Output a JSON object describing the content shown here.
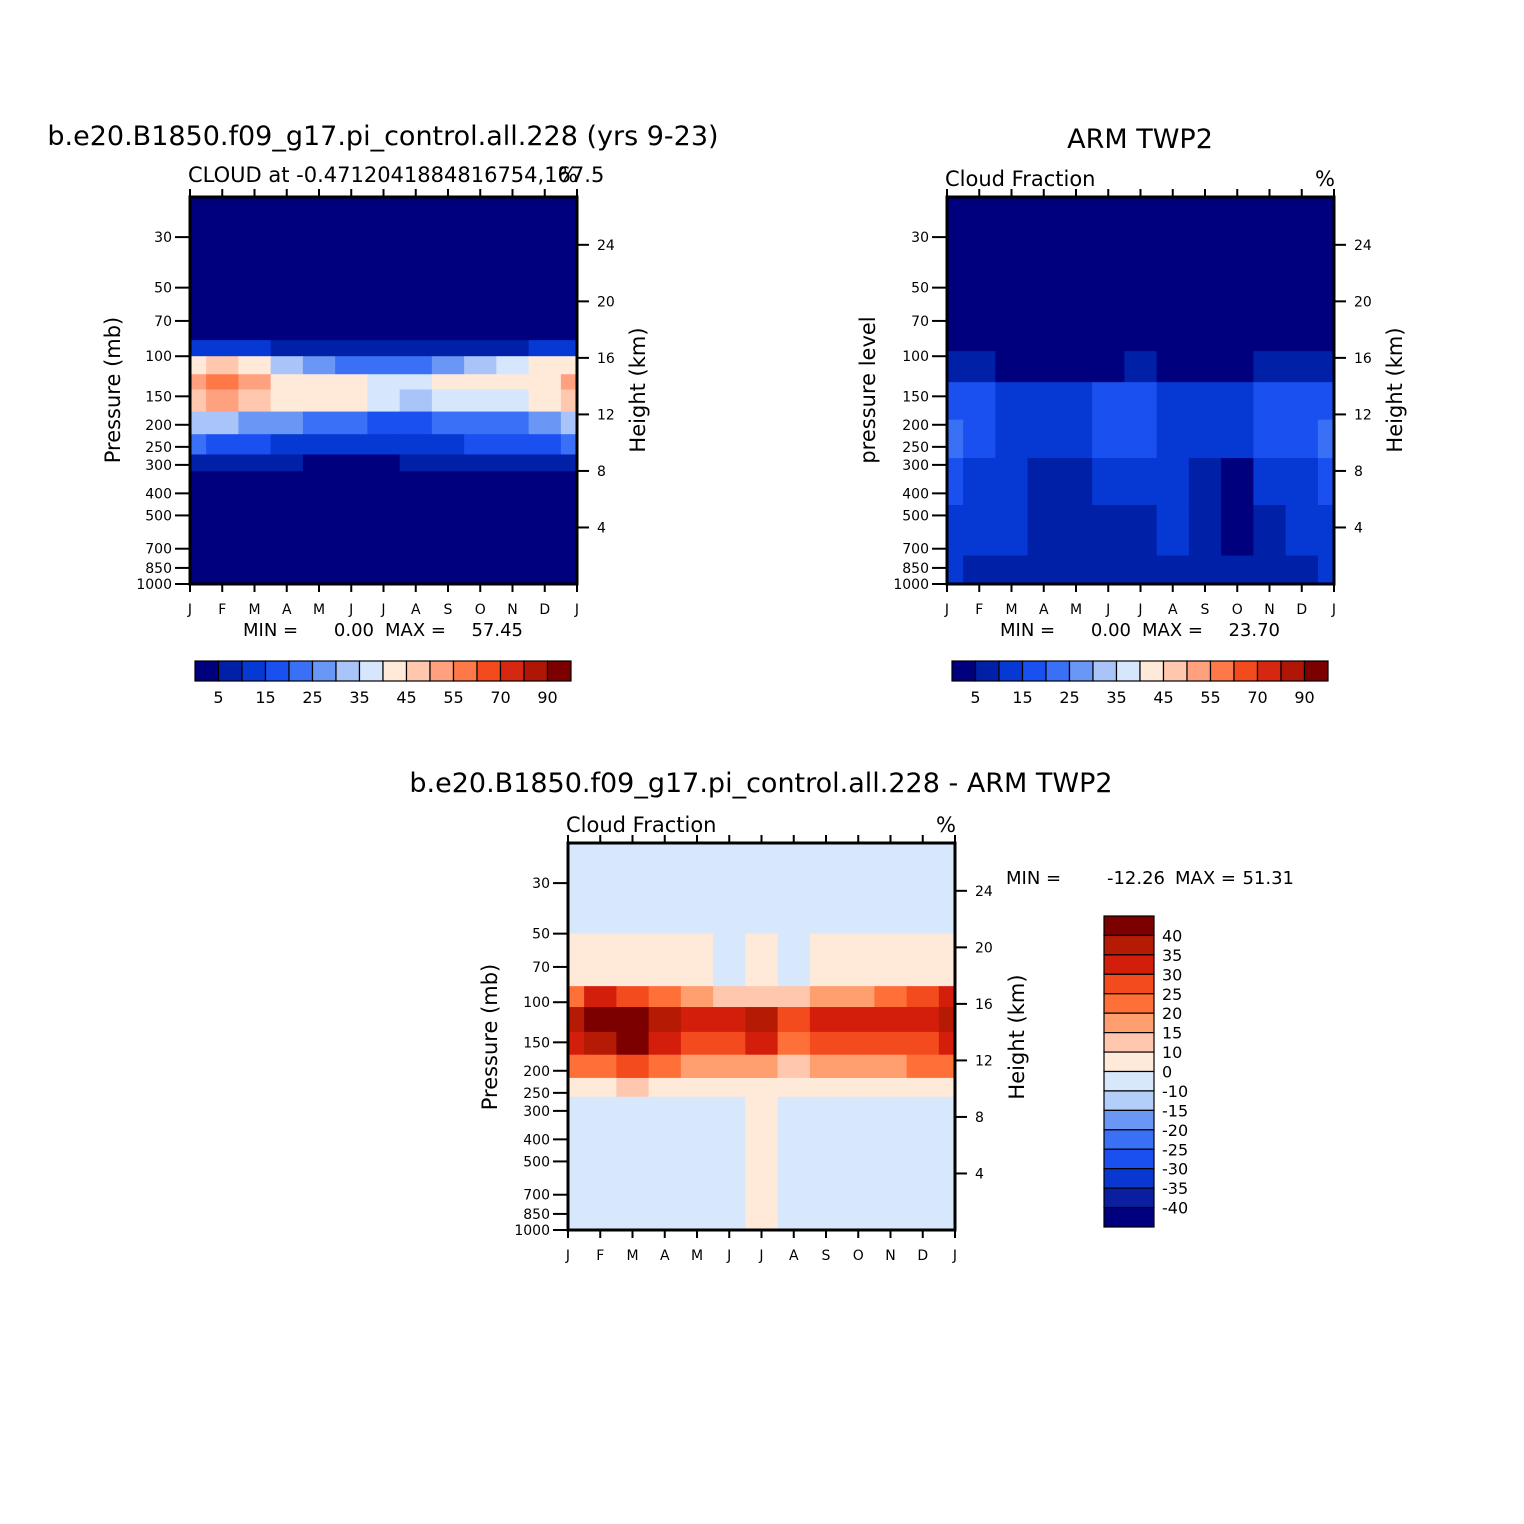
{
  "chart_data": [
    {
      "type": "heatmap",
      "panel": "model",
      "title": "b.e20.B1850.f09_g17.pi_control.all.228 (yrs 9-23)",
      "subtitle_left": "CLOUD at -0.4712041884816754,167.5",
      "subtitle_right": "%",
      "ylabel": "Pressure (mb)",
      "ylabel_right": "Height (km)",
      "x_ticks": [
        "J",
        "F",
        "M",
        "A",
        "M",
        "J",
        "J",
        "A",
        "S",
        "O",
        "N",
        "D",
        "J"
      ],
      "y_ticks": [
        "30",
        "50",
        "70",
        "100",
        "150",
        "200",
        "250",
        "300",
        "400",
        "500",
        "700",
        "850",
        "1000"
      ],
      "y_ticks_right": [
        "24",
        "20",
        "16",
        "12",
        "8",
        "4"
      ],
      "stats": {
        "min_label": "MIN =",
        "min": "0.00",
        "max_label": "MAX =",
        "max": "57.45"
      },
      "colorbar_labels": [
        "5",
        "15",
        "25",
        "35",
        "45",
        "55",
        "70",
        "90"
      ],
      "bands": [
        {
          "p_top": 20,
          "p_bot": 85,
          "values": [
            2,
            2,
            2,
            2,
            2,
            2,
            2,
            2,
            2,
            2,
            2,
            2,
            2
          ]
        },
        {
          "p_top": 85,
          "p_bot": 100,
          "values": [
            12,
            14,
            12,
            8,
            5,
            5,
            5,
            5,
            6,
            8,
            9,
            12,
            12
          ]
        },
        {
          "p_top": 100,
          "p_bot": 120,
          "values": [
            40,
            45,
            42,
            32,
            25,
            22,
            20,
            22,
            28,
            32,
            38,
            42,
            40
          ]
        },
        {
          "p_top": 120,
          "p_bot": 140,
          "values": [
            50,
            57,
            50,
            42,
            40,
            40,
            38,
            35,
            40,
            42,
            43,
            44,
            50
          ]
        },
        {
          "p_top": 140,
          "p_bot": 175,
          "values": [
            48,
            50,
            45,
            42,
            42,
            40,
            35,
            33,
            38,
            38,
            38,
            42,
            48
          ]
        },
        {
          "p_top": 175,
          "p_bot": 220,
          "values": [
            30,
            30,
            28,
            25,
            22,
            20,
            18,
            16,
            20,
            22,
            24,
            28,
            30
          ]
        },
        {
          "p_top": 220,
          "p_bot": 270,
          "values": [
            20,
            18,
            16,
            14,
            12,
            10,
            10,
            12,
            14,
            15,
            16,
            18,
            20
          ]
        },
        {
          "p_top": 270,
          "p_bot": 320,
          "values": [
            8,
            8,
            6,
            5,
            4,
            4,
            4,
            5,
            6,
            6,
            6,
            8,
            8
          ]
        },
        {
          "p_top": 320,
          "p_bot": 1000,
          "values": [
            3,
            3,
            2,
            2,
            2,
            2,
            3,
            2,
            2,
            2,
            2,
            3,
            3
          ]
        }
      ]
    },
    {
      "type": "heatmap",
      "panel": "obs",
      "title": "ARM TWP2",
      "subtitle_left": "Cloud Fraction",
      "subtitle_right": "%",
      "ylabel": "pressure level",
      "ylabel_right": "Height (km)",
      "x_ticks": [
        "J",
        "F",
        "M",
        "A",
        "M",
        "J",
        "J",
        "A",
        "S",
        "O",
        "N",
        "D",
        "J"
      ],
      "y_ticks": [
        "30",
        "50",
        "70",
        "100",
        "150",
        "200",
        "250",
        "300",
        "400",
        "500",
        "700",
        "850",
        "1000"
      ],
      "y_ticks_right": [
        "24",
        "20",
        "16",
        "12",
        "8",
        "4"
      ],
      "stats": {
        "min_label": "MIN =",
        "min": "0.00",
        "max_label": "MAX =",
        "max": "23.70"
      },
      "colorbar_labels": [
        "5",
        "15",
        "25",
        "35",
        "45",
        "55",
        "70",
        "90"
      ],
      "bands": [
        {
          "p_top": 20,
          "p_bot": 95,
          "values": [
            2,
            2,
            2,
            2,
            2,
            2,
            2,
            2,
            2,
            2,
            2,
            2,
            2
          ]
        },
        {
          "p_top": 95,
          "p_bot": 130,
          "values": [
            8,
            6,
            4,
            4,
            3,
            3,
            6,
            4,
            3,
            4,
            5,
            6,
            8
          ]
        },
        {
          "p_top": 130,
          "p_bot": 190,
          "values": [
            15,
            16,
            12,
            10,
            10,
            15,
            16,
            12,
            12,
            14,
            15,
            15,
            15
          ]
        },
        {
          "p_top": 190,
          "p_bot": 280,
          "values": [
            20,
            18,
            14,
            12,
            12,
            18,
            18,
            14,
            12,
            14,
            18,
            18,
            20
          ]
        },
        {
          "p_top": 280,
          "p_bot": 450,
          "values": [
            16,
            14,
            10,
            8,
            8,
            10,
            12,
            10,
            6,
            4,
            10,
            14,
            16
          ]
        },
        {
          "p_top": 450,
          "p_bot": 750,
          "values": [
            14,
            12,
            10,
            8,
            6,
            8,
            8,
            10,
            5,
            4,
            8,
            10,
            14
          ]
        },
        {
          "p_top": 750,
          "p_bot": 1000,
          "values": [
            10,
            8,
            6,
            6,
            6,
            6,
            6,
            6,
            6,
            6,
            6,
            8,
            10
          ]
        }
      ]
    },
    {
      "type": "heatmap",
      "panel": "diff",
      "title": "b.e20.B1850.f09_g17.pi_control.all.228 - ARM TWP2",
      "subtitle_left": "Cloud Fraction",
      "subtitle_right": "%",
      "ylabel": "Pressure (mb)",
      "ylabel_right": "Height (km)",
      "x_ticks": [
        "J",
        "F",
        "M",
        "A",
        "M",
        "J",
        "J",
        "A",
        "S",
        "O",
        "N",
        "D",
        "J"
      ],
      "y_ticks": [
        "30",
        "50",
        "70",
        "100",
        "150",
        "200",
        "250",
        "300",
        "400",
        "500",
        "700",
        "850",
        "1000"
      ],
      "y_ticks_right": [
        "24",
        "20",
        "16",
        "12",
        "8",
        "4"
      ],
      "stats": {
        "min_label": "MIN =",
        "min": "-12.26",
        "max_label": "MAX =",
        "max": "51.31"
      },
      "colorbar_labels": [
        "40",
        "35",
        "30",
        "25",
        "20",
        "15",
        "10",
        "0",
        "-10",
        "-15",
        "-20",
        "-25",
        "-30",
        "-35",
        "-40"
      ],
      "bands": [
        {
          "p_top": 20,
          "p_bot": 50,
          "values": [
            -2,
            -2,
            -2,
            -2,
            -2,
            -2,
            -2,
            -2,
            -2,
            -2,
            -2,
            -2,
            -2
          ]
        },
        {
          "p_top": 50,
          "p_bot": 85,
          "values": [
            5,
            5,
            5,
            5,
            4,
            -2,
            4,
            -2,
            4,
            5,
            5,
            5,
            5
          ]
        },
        {
          "p_top": 85,
          "p_bot": 105,
          "values": [
            20,
            30,
            28,
            20,
            15,
            12,
            14,
            10,
            15,
            18,
            20,
            25,
            30
          ]
        },
        {
          "p_top": 105,
          "p_bot": 135,
          "values": [
            38,
            45,
            45,
            38,
            30,
            32,
            36,
            25,
            32,
            30,
            30,
            32,
            38
          ]
        },
        {
          "p_top": 135,
          "p_bot": 170,
          "values": [
            30,
            35,
            40,
            30,
            26,
            28,
            32,
            22,
            26,
            26,
            26,
            28,
            30
          ]
        },
        {
          "p_top": 170,
          "p_bot": 215,
          "values": [
            22,
            24,
            25,
            20,
            18,
            16,
            16,
            14,
            18,
            18,
            18,
            20,
            22
          ]
        },
        {
          "p_top": 215,
          "p_bot": 260,
          "values": [
            8,
            8,
            12,
            6,
            6,
            6,
            6,
            6,
            6,
            8,
            8,
            8,
            8
          ]
        },
        {
          "p_top": 260,
          "p_bot": 1000,
          "values": [
            -2,
            -2,
            -2,
            -2,
            -2,
            -2,
            4,
            -2,
            -2,
            -2,
            -2,
            -2,
            -2
          ]
        }
      ]
    }
  ]
}
